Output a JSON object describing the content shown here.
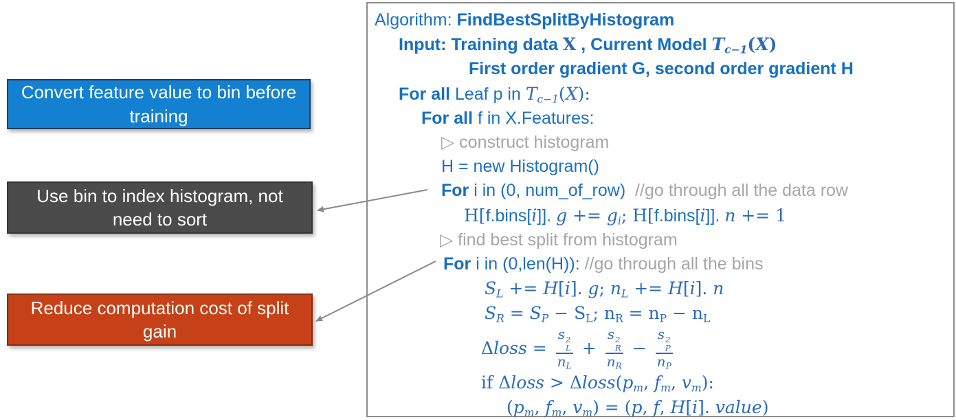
{
  "colors": {
    "callout_blue_bg": "#1480d2",
    "callout_blue_border": "#1f3f63",
    "callout_gray_bg": "#4b4b4b",
    "callout_gray_border": "#353535",
    "callout_red_bg": "#c64117",
    "callout_red_border": "#8a2d10",
    "code_text_blue": "#1d71c2",
    "comment_gray": "#a6a6a6",
    "arrow": "#8a8a8a",
    "box_border": "#8d8d8d"
  },
  "callouts": [
    {
      "id": "convert-to-bin",
      "text": "Convert feature value to bin before training",
      "bg": "#1480d2",
      "border": "#1f3f63"
    },
    {
      "id": "bin-index-histogram",
      "text": "Use bin to index histogram, not need to sort",
      "bg": "#4b4b4b",
      "border": "#353535"
    },
    {
      "id": "reduce-computation-cost",
      "text": "Reduce computation cost of split gain",
      "bg": "#c64117",
      "border": "#8a2d10"
    }
  ],
  "algorithm": {
    "title": "Algorithm: FindBestSplitByHistogram",
    "lines": [
      {
        "ind": 0,
        "parts": [
          {
            "t": "Algorithm: ",
            "c": "r"
          },
          {
            "t": "FindBestSplitByHistogram",
            "c": "k"
          }
        ]
      },
      {
        "ind": 35,
        "parts": [
          {
            "t": "Input: Training data ",
            "c": "k"
          },
          {
            "t": "X",
            "c": "mu b"
          },
          {
            "t": " , ",
            "c": "k"
          },
          {
            "t": "Current Model ",
            "c": "k"
          },
          {
            "t": "T",
            "c": "m b"
          },
          {
            "t": "c−1",
            "c": "m b",
            "sub": true
          },
          {
            "t": "(",
            "c": "mu b"
          },
          {
            "t": "X",
            "c": "m b"
          },
          {
            "t": ")",
            "c": "mu b"
          }
        ]
      },
      {
        "ind": 137,
        "parts": [
          {
            "t": "First order gradient G, second order gradient H",
            "c": "k"
          }
        ]
      },
      {
        "ind": 35,
        "parts": [
          {
            "t": "For all",
            "c": "k"
          },
          {
            "t": " Leaf p in ",
            "c": "r"
          },
          {
            "t": "T",
            "c": "m"
          },
          {
            "t": "c−1",
            "c": "m",
            "sub": true
          },
          {
            "t": "(",
            "c": "mu"
          },
          {
            "t": "X",
            "c": "m"
          },
          {
            "t": "):",
            "c": "mu"
          }
        ]
      },
      {
        "ind": 68,
        "parts": [
          {
            "t": "For all",
            "c": "k"
          },
          {
            "t": " f in X.Features:",
            "c": "r"
          }
        ]
      },
      {
        "ind": 97,
        "parts": [
          {
            "t": "▷ construct histogram",
            "c": "c"
          }
        ]
      },
      {
        "ind": 97,
        "parts": [
          {
            "t": "H = new Histogram()",
            "c": "r"
          }
        ]
      },
      {
        "ind": 97,
        "parts": [
          {
            "t": "For",
            "c": "k"
          },
          {
            "t": " i in (0, num_of_row)",
            "c": "r"
          },
          {
            "t": "  //go through all the data row",
            "c": "c"
          }
        ]
      },
      {
        "ind": 130,
        "parts": [
          {
            "t": "H[",
            "c": "mu"
          },
          {
            "t": "f.bins[",
            "c": "r"
          },
          {
            "t": "i",
            "c": "m"
          },
          {
            "t": "]]. ",
            "c": "r"
          },
          {
            "t": "g",
            "c": "m"
          },
          {
            "t": " += ",
            "c": "mu"
          },
          {
            "t": "g",
            "c": "m"
          },
          {
            "t": "i",
            "c": "m",
            "sub": true
          },
          {
            "t": "; ",
            "c": "mu"
          },
          {
            "t": "H[",
            "c": "mu"
          },
          {
            "t": "f.bins[",
            "c": "r"
          },
          {
            "t": "i",
            "c": "m"
          },
          {
            "t": "]]. ",
            "c": "r"
          },
          {
            "t": "n",
            "c": "m"
          },
          {
            "t": " += 1",
            "c": "mu"
          }
        ]
      },
      {
        "ind": 95,
        "parts": [
          {
            "t": "▷ find best split from histogram",
            "c": "c"
          }
        ]
      },
      {
        "ind": 100,
        "parts": [
          {
            "t": "For",
            "c": "k"
          },
          {
            "t": " i in (0,len(H)): ",
            "c": "r"
          },
          {
            "t": "//go through all the bins",
            "c": "c"
          }
        ]
      },
      {
        "ind": 160,
        "parts": [
          {
            "t": "S",
            "c": "m"
          },
          {
            "t": "L",
            "c": "m",
            "sub": true
          },
          {
            "t": " += ",
            "c": "mu"
          },
          {
            "t": "H",
            "c": "m"
          },
          {
            "t": "[",
            "c": "mu"
          },
          {
            "t": "i",
            "c": "m"
          },
          {
            "t": "]. ",
            "c": "mu"
          },
          {
            "t": "g",
            "c": "m"
          },
          {
            "t": "; ",
            "c": "mu"
          },
          {
            "t": "n",
            "c": "m"
          },
          {
            "t": "L",
            "c": "m",
            "sub": true
          },
          {
            "t": " += ",
            "c": "mu"
          },
          {
            "t": "H",
            "c": "m"
          },
          {
            "t": "[",
            "c": "mu"
          },
          {
            "t": "i",
            "c": "m"
          },
          {
            "t": "]. ",
            "c": "mu"
          },
          {
            "t": "n",
            "c": "m"
          }
        ]
      },
      {
        "ind": 160,
        "parts": [
          {
            "t": "S",
            "c": "m"
          },
          {
            "t": "R",
            "c": "m",
            "sub": true
          },
          {
            "t": " = ",
            "c": "mu"
          },
          {
            "t": "S",
            "c": "m"
          },
          {
            "t": "P",
            "c": "m",
            "sub": true
          },
          {
            "t": " − ",
            "c": "mu"
          },
          {
            "t": "S",
            "c": "mu"
          },
          {
            "t": "L",
            "c": "mu",
            "sub": true
          },
          {
            "t": "; ",
            "c": "mu"
          },
          {
            "t": "n",
            "c": "mu"
          },
          {
            "t": "R",
            "c": "mu",
            "sub": true
          },
          {
            "t": " = ",
            "c": "mu"
          },
          {
            "t": "n",
            "c": "mu"
          },
          {
            "t": "P",
            "c": "mu",
            "sub": true
          },
          {
            "t": " − ",
            "c": "mu"
          },
          {
            "t": "n",
            "c": "mu"
          },
          {
            "t": "L",
            "c": "mu",
            "sub": true
          }
        ]
      },
      {
        "ind": 155,
        "tall": true,
        "parts": [
          {
            "t": "Δ",
            "c": "mu"
          },
          {
            "t": "loss",
            "c": "m"
          },
          {
            "t": " = ",
            "c": "mu"
          },
          {
            "f": {
              "n": [
                {
                  "t": "s",
                  "c": "m",
                  "st": {
                    "u": "2",
                    "b": "L"
                  }
                }
              ],
              "d": [
                {
                  "t": "n",
                  "c": "m"
                },
                {
                  "t": "L",
                  "c": "m",
                  "sub": true
                }
              ]
            }
          },
          {
            "t": " + ",
            "c": "mu"
          },
          {
            "f": {
              "n": [
                {
                  "t": "s",
                  "c": "m",
                  "st": {
                    "u": "2",
                    "b": "R"
                  }
                }
              ],
              "d": [
                {
                  "t": "n",
                  "c": "m"
                },
                {
                  "t": "R",
                  "c": "m",
                  "sub": true
                }
              ]
            }
          },
          {
            "t": " − ",
            "c": "mu"
          },
          {
            "f": {
              "n": [
                {
                  "t": "s",
                  "c": "m",
                  "st": {
                    "u": "2",
                    "b": "P"
                  }
                }
              ],
              "d": [
                {
                  "t": "n",
                  "c": "m"
                },
                {
                  "t": "P",
                  "c": "m",
                  "sub": true
                }
              ]
            }
          }
        ]
      },
      {
        "ind": 155,
        "parts": [
          {
            "t": "if ",
            "c": "mu"
          },
          {
            "t": "Δ",
            "c": "mu"
          },
          {
            "t": "loss",
            "c": "m"
          },
          {
            "t": " > ",
            "c": "mu"
          },
          {
            "t": "Δ",
            "c": "mu"
          },
          {
            "t": "loss",
            "c": "m"
          },
          {
            "t": "(",
            "c": "mu"
          },
          {
            "t": "p",
            "c": "m"
          },
          {
            "t": "m",
            "c": "m",
            "sub": true
          },
          {
            "t": ", ",
            "c": "mu"
          },
          {
            "t": "f",
            "c": "m"
          },
          {
            "t": "m",
            "c": "m",
            "sub": true
          },
          {
            "t": ", ",
            "c": "mu"
          },
          {
            "t": "v",
            "c": "m"
          },
          {
            "t": "m",
            "c": "m",
            "sub": true
          },
          {
            "t": "):",
            "c": "mu"
          }
        ]
      },
      {
        "ind": 192,
        "parts": [
          {
            "t": "(",
            "c": "mu"
          },
          {
            "t": "p",
            "c": "m"
          },
          {
            "t": "m",
            "c": "m",
            "sub": true
          },
          {
            "t": ", ",
            "c": "mu"
          },
          {
            "t": "f",
            "c": "m"
          },
          {
            "t": "m",
            "c": "m",
            "sub": true
          },
          {
            "t": ", ",
            "c": "mu"
          },
          {
            "t": "v",
            "c": "m"
          },
          {
            "t": "m",
            "c": "m",
            "sub": true
          },
          {
            "t": ") = (",
            "c": "mu"
          },
          {
            "t": "p",
            "c": "m"
          },
          {
            "t": ", ",
            "c": "mu"
          },
          {
            "t": "f",
            "c": "m"
          },
          {
            "t": ", ",
            "c": "mu"
          },
          {
            "t": "H",
            "c": "m"
          },
          {
            "t": "[",
            "c": "mu"
          },
          {
            "t": "i",
            "c": "m"
          },
          {
            "t": "]. ",
            "c": "mu"
          },
          {
            "t": "value",
            "c": "m"
          },
          {
            "t": ")",
            "c": "mu"
          }
        ]
      }
    ]
  }
}
